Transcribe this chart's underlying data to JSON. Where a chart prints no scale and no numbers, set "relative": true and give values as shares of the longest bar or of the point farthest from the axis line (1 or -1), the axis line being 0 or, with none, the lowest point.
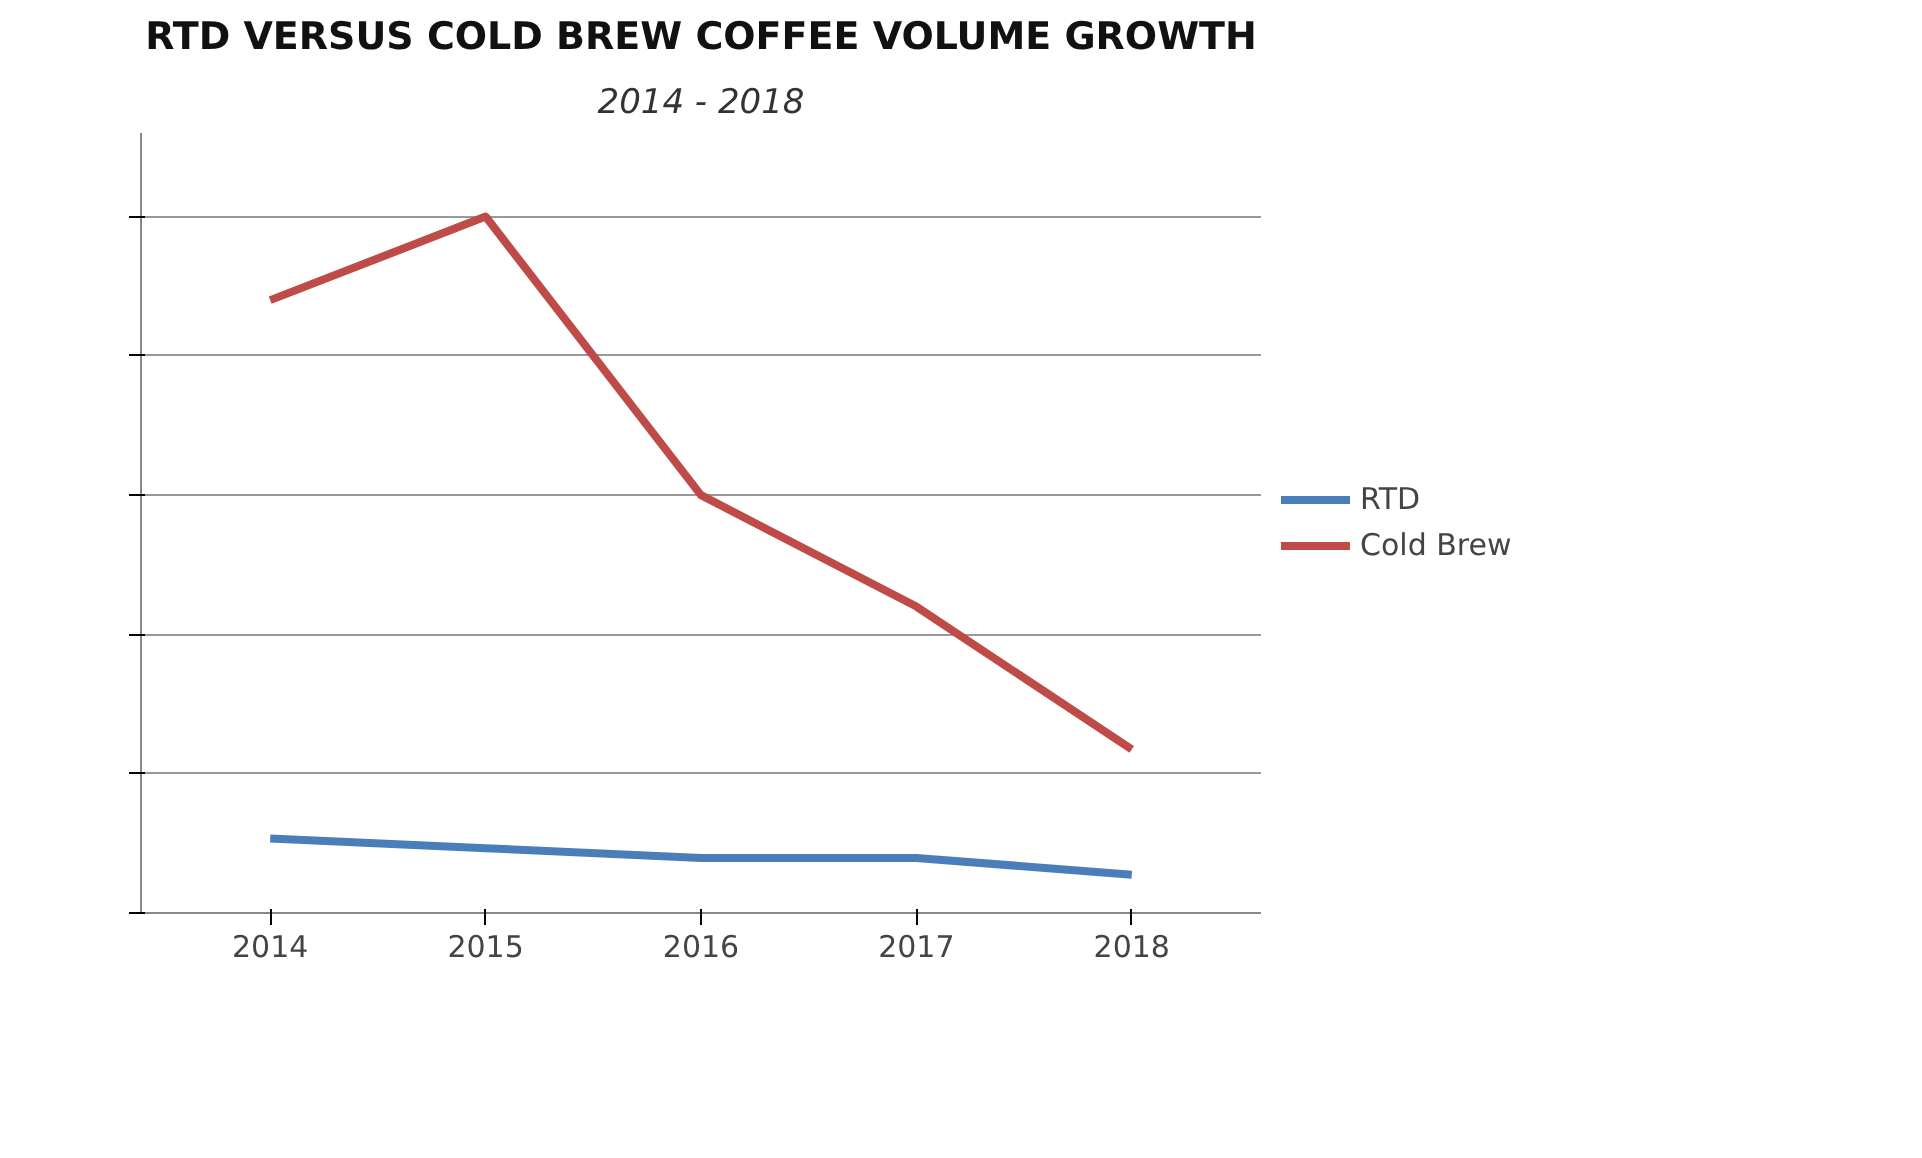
{
  "chart_data": {
    "type": "line",
    "title": "RTD VERSUS COLD BREW COFFEE VOLUME GROWTH",
    "subtitle": "2014 - 2018",
    "categories": [
      "2014",
      "2015",
      "2016",
      "2017",
      "2018"
    ],
    "relative": true,
    "grid": "y",
    "legend": "right",
    "line_style": "solid",
    "series": [
      {
        "name": "RTD",
        "color": "#4a7ebb",
        "values": [
          0.107,
          0.093,
          0.079,
          0.079,
          0.055
        ]
      },
      {
        "name": "Cold Brew",
        "color": "#be4b48",
        "values": [
          0.88,
          1,
          0.6,
          0.44,
          0.235
        ]
      }
    ]
  }
}
